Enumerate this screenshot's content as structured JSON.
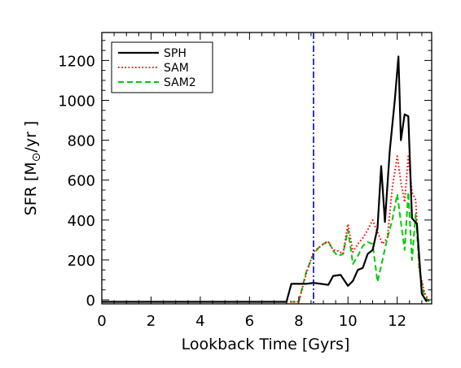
{
  "chart_data": {
    "type": "line",
    "title": "",
    "xlabel": "Lookback Time [Gyrs]",
    "ylabel": "SFR [M⊙/yr ]",
    "ylabel_parts": {
      "prefix": "SFR [M",
      "subscript": "⊙",
      "suffix": "/yr ]"
    },
    "xlim": [
      0,
      13.4
    ],
    "ylim": [
      -20,
      1340
    ],
    "x_ticks": [
      0,
      2,
      4,
      6,
      8,
      10,
      12
    ],
    "x_tick_labels": [
      "0",
      "2",
      "4",
      "6",
      "8",
      "10",
      "12"
    ],
    "y_ticks": [
      0,
      200,
      400,
      600,
      800,
      1000,
      1200
    ],
    "y_tick_labels": [
      "0",
      "200",
      "400",
      "600",
      "800",
      "1000",
      "1200"
    ],
    "x_minor_step": 0.5,
    "y_minor_step": 50,
    "grid": false,
    "legend_position": "top-left",
    "vertical_line": {
      "x": 8.6,
      "color": "#0000cc",
      "style": "dash-dot"
    },
    "series": [
      {
        "name": "SPH",
        "color": "#000000",
        "style": "solid",
        "x": [
          0,
          7.5,
          7.7,
          8.0,
          8.3,
          8.6,
          8.9,
          9.2,
          9.4,
          9.7,
          10.0,
          10.2,
          10.4,
          10.6,
          10.8,
          11.0,
          11.2,
          11.35,
          11.5,
          11.7,
          11.9,
          12.05,
          12.15,
          12.3,
          12.45,
          12.6,
          12.8,
          13.0,
          13.2
        ],
        "y": [
          -10,
          -10,
          80,
          80,
          80,
          85,
          80,
          75,
          120,
          125,
          70,
          95,
          150,
          160,
          230,
          250,
          360,
          670,
          390,
          750,
          1000,
          1220,
          800,
          930,
          920,
          410,
          380,
          30,
          -10
        ]
      },
      {
        "name": "SAM",
        "color": "#ff0000",
        "style": "dotted",
        "x": [
          0,
          8.0,
          8.3,
          8.6,
          8.8,
          9.0,
          9.2,
          9.4,
          9.6,
          9.8,
          10.0,
          10.2,
          10.4,
          10.6,
          10.8,
          11.0,
          11.2,
          11.4,
          11.6,
          11.8,
          12.0,
          12.15,
          12.3,
          12.45,
          12.6,
          12.75,
          12.9,
          13.1,
          13.3
        ],
        "y": [
          -10,
          -10,
          130,
          240,
          260,
          280,
          290,
          250,
          245,
          230,
          380,
          240,
          280,
          310,
          350,
          400,
          340,
          280,
          310,
          560,
          720,
          590,
          490,
          720,
          540,
          500,
          150,
          40,
          -10
        ]
      },
      {
        "name": "SAM2",
        "color": "#00cc00",
        "style": "dashed",
        "x": [
          0,
          8.0,
          8.3,
          8.6,
          8.8,
          9.0,
          9.2,
          9.4,
          9.6,
          9.8,
          10.0,
          10.2,
          10.4,
          10.6,
          10.8,
          11.0,
          11.2,
          11.4,
          11.6,
          11.8,
          12.0,
          12.15,
          12.3,
          12.45,
          12.6,
          12.75,
          12.9,
          13.1,
          13.3
        ],
        "y": [
          -10,
          -10,
          140,
          230,
          260,
          280,
          295,
          245,
          220,
          230,
          350,
          180,
          220,
          270,
          290,
          280,
          90,
          200,
          310,
          400,
          530,
          390,
          250,
          540,
          200,
          430,
          150,
          20,
          -10
        ]
      }
    ]
  }
}
